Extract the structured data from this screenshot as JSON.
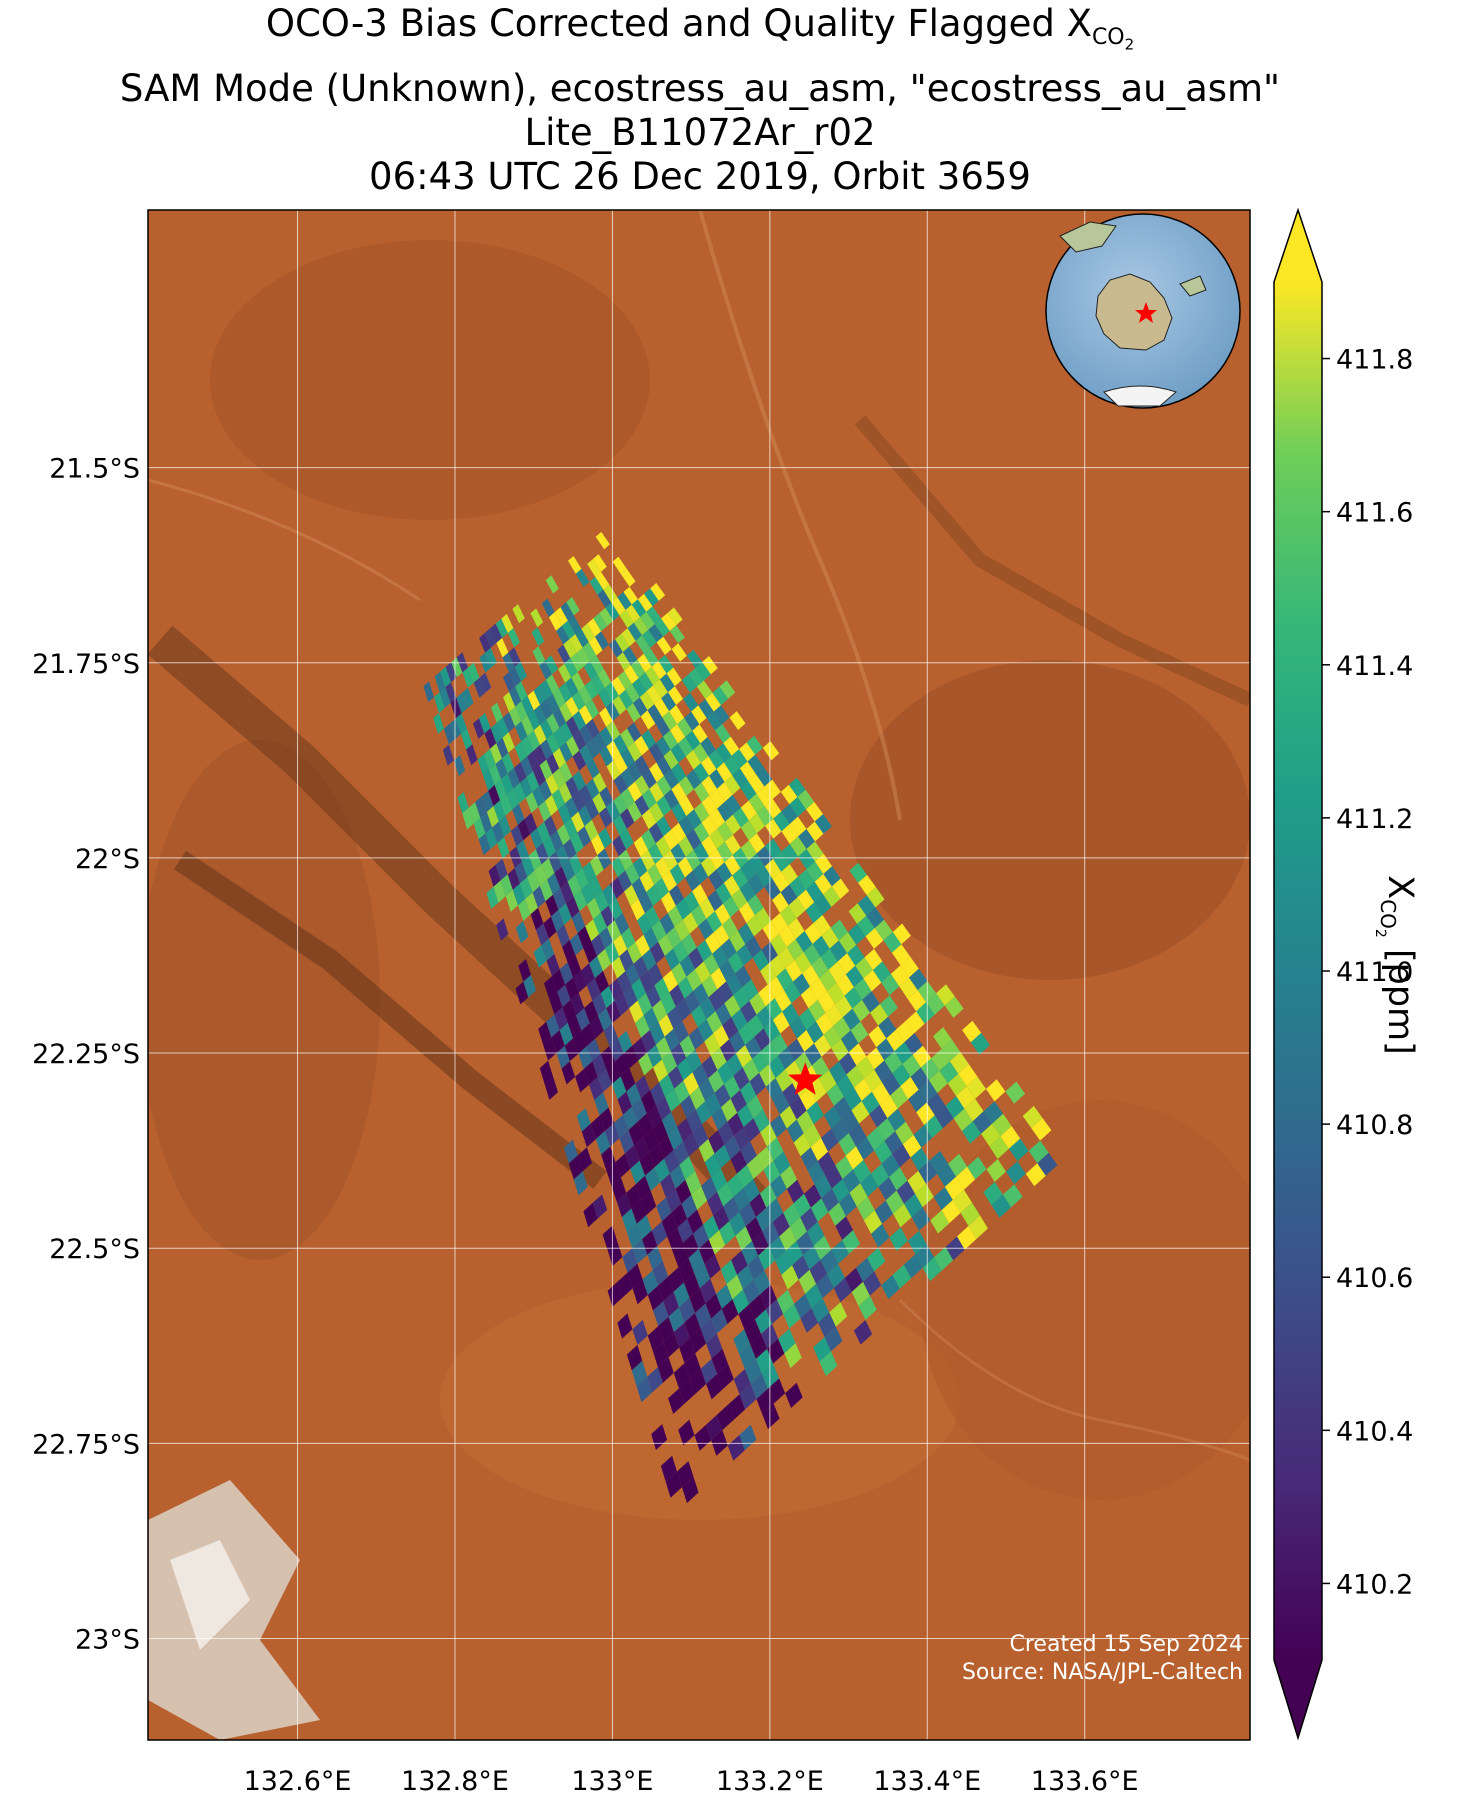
{
  "title": {
    "line1_main": "OCO-3 Bias Corrected and Quality Flagged X",
    "line1_sub": "CO",
    "line1_sub2": "2",
    "line2": "SAM Mode (Unknown), ecostress_au_asm, \"ecostress_au_asm\"",
    "line3": "Lite_B11072Ar_r02",
    "line4": "06:43 UTC 26 Dec 2019, Orbit 3659"
  },
  "colorbar": {
    "label_main": "X",
    "label_sub": "CO",
    "label_sub2": "2",
    "label_unit": " [ppm]",
    "colormap": "viridis",
    "vmin": 410.1,
    "vmax": 411.9,
    "ticks": [
      "410.2",
      "410.4",
      "410.6",
      "410.8",
      "411.0",
      "411.2",
      "411.4",
      "411.6",
      "411.8"
    ],
    "extend": "both"
  },
  "credit": {
    "line1": "Created 15 Sep 2024",
    "line2": "Source: NASA/JPL-Caltech"
  },
  "chart_data": {
    "type": "heatmap",
    "lon_range": [
      132.41,
      133.81
    ],
    "lat_range": [
      -23.13,
      -21.17
    ],
    "x_ticks": [
      "132.6°E",
      "132.8°E",
      "133°E",
      "133.2°E",
      "133.4°E",
      "133.6°E"
    ],
    "x_tick_values": [
      132.6,
      132.8,
      133.0,
      133.2,
      133.4,
      133.6
    ],
    "y_ticks": [
      "21.5°S",
      "21.75°S",
      "22°S",
      "22.25°S",
      "22.5°S",
      "22.75°S",
      "23°S"
    ],
    "y_tick_values": [
      -21.5,
      -21.75,
      -22.0,
      -22.25,
      -22.5,
      -22.75,
      -23.0
    ],
    "grid": true,
    "target": {
      "lon": 133.245,
      "lat": -22.285,
      "marker": "star",
      "color": "#ff0000"
    },
    "inset": {
      "type": "globe",
      "centered_on": "Australia",
      "marker": "star",
      "marker_color": "#ff0000"
    },
    "swath_corners": {
      "top_left": {
        "lon": 132.76,
        "lat": -21.78
      },
      "top_right": {
        "lon": 133.0,
        "lat": -21.57
      },
      "bottom_right": {
        "lon": 133.58,
        "lat": -22.38
      },
      "bottom_left": {
        "lon": 133.08,
        "lat": -22.84
      }
    },
    "soundings_summary": "approx. 1800 footprint soundings; XCO2 values range 410.1 to 411.9 ppm; lower values (410.2-410.6) concentrated along southwest edge, higher values (411.6-411.9) in the central and eastern parts"
  }
}
